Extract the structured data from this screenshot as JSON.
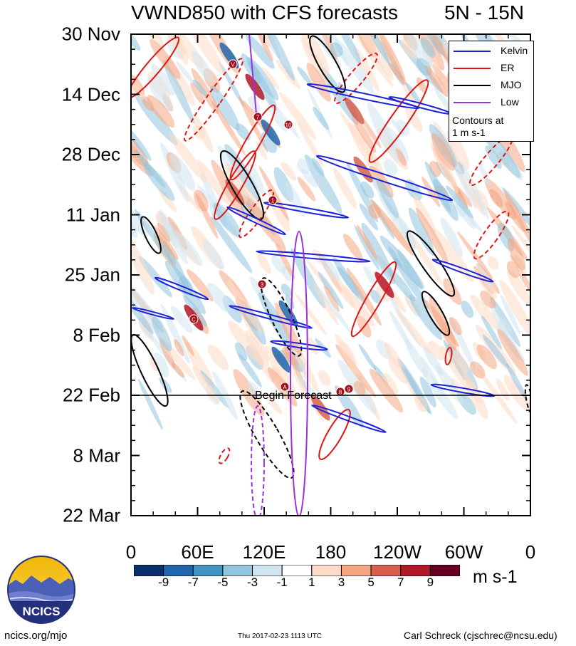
{
  "title_left": "VWND850 with CFS forecasts",
  "title_right": "5N - 15N",
  "colors": {
    "kelvin": "#1f25d6",
    "er": "#e01616",
    "mjo": "#000000",
    "low": "#9b30e0",
    "storm": "#a3101a"
  },
  "chart_data": {
    "type": "heatmap",
    "variable": "VWND850",
    "y_tick_labels": [
      "30 Nov",
      "14 Dec",
      "28 Dec",
      "11 Jan",
      "25 Jan",
      "8 Feb",
      "22 Feb",
      "8 Mar",
      "22 Mar"
    ],
    "x_tick_labels": [
      "0",
      "60E",
      "120E",
      "180",
      "120W",
      "60W",
      "0"
    ],
    "x_range_deg": [
      0,
      360
    ],
    "forecast_start": "22 Feb",
    "forecast_label": "Begin Forecast",
    "colorbar": {
      "ticks": [
        "-9",
        "-7",
        "-5",
        "-3",
        "-1",
        "1",
        "3",
        "5",
        "7",
        "9"
      ],
      "unit": "m s-1",
      "colors": [
        "#08306b",
        "#2166ac",
        "#4393c3",
        "#92c5de",
        "#d1e5f0",
        "#ffffff",
        "#fddbc7",
        "#f4a582",
        "#d6604d",
        "#b2182b",
        "#67001f"
      ]
    },
    "legend": [
      {
        "name": "Kelvin",
        "color": "#1f25d6"
      },
      {
        "name": "ER",
        "color": "#e01616"
      },
      {
        "name": "MJO",
        "color": "#000000"
      },
      {
        "name": "Low",
        "color": "#9b30e0"
      }
    ],
    "legend_note": [
      "Contours at",
      "1 m s-1"
    ],
    "storm_markers": [
      "V",
      "7",
      "10",
      "1",
      "3",
      "C",
      "A",
      "8",
      "9"
    ],
    "grid": false,
    "legend_position": "top-right"
  },
  "footer": {
    "site": "ncics.org/mjo",
    "timestamp": "Thu 2017-02-23 1113 UTC",
    "author": "Carl Schreck (cjschrec@ncsu.edu)",
    "logo_text": "NCICS"
  }
}
